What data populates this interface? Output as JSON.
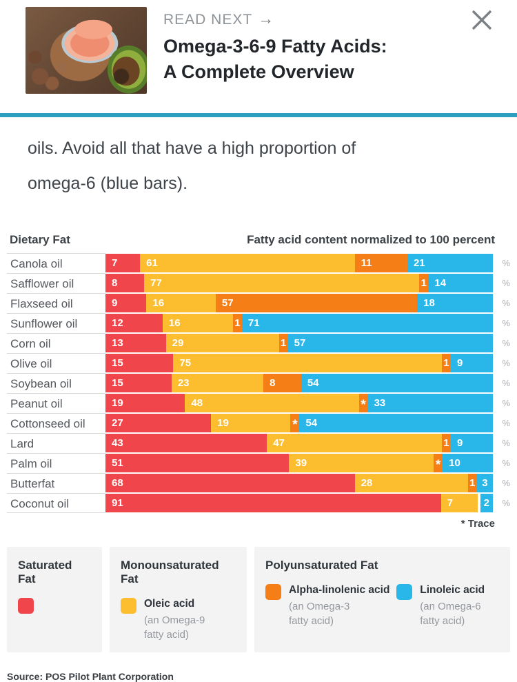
{
  "theme": {
    "divider_color": "#2D9FBE",
    "legend_bg": "#F3F3F4",
    "bar_label_color": "#FFFFFF"
  },
  "header": {
    "kicker": "READ NEXT",
    "arrow": "→",
    "title_line1": "Omega-3-6-9 Fatty Acids:",
    "title_line2": "A Complete Overview",
    "thumbnail_alt": "salmon-nuts-avocado-photo"
  },
  "body": {
    "line1": "oils. Avoid all that have a high proportion of",
    "line2": "omega-6 (blue bars)."
  },
  "chart_data": {
    "type": "bar",
    "orientation": "horizontal",
    "stacked": true,
    "normalized_to": 100,
    "col_header_left": "Dietary Fat",
    "col_header_right": "Fatty acid content normalized to 100 percent",
    "unit": "%",
    "trace_note": "* Trace",
    "colors": {
      "saturated": "#F0464B",
      "oleic": "#FCBD2E",
      "alpha_linolenic": "#F57E16",
      "linoleic": "#29B6E8",
      "spacer": "#FFFFFF"
    },
    "series_names": [
      "Saturated Fat",
      "Oleic acid (Omega-9)",
      "Alpha-linolenic acid (Omega-3)",
      "Linoleic acid (Omega-6)"
    ],
    "rows": [
      {
        "label": "Canola oil",
        "segments": [
          {
            "key": "saturated",
            "value": 7,
            "label": "7"
          },
          {
            "key": "oleic",
            "value": 61,
            "label": "61"
          },
          {
            "key": "alpha_linolenic",
            "value": 11,
            "label": "11"
          },
          {
            "key": "linoleic",
            "value": 21,
            "label": "21"
          }
        ]
      },
      {
        "label": "Safflower oil",
        "segments": [
          {
            "key": "saturated",
            "value": 8,
            "label": "8"
          },
          {
            "key": "oleic",
            "value": 77,
            "label": "77"
          },
          {
            "key": "alpha_linolenic",
            "value": 1,
            "label": "1"
          },
          {
            "key": "linoleic",
            "value": 14,
            "label": "14"
          }
        ]
      },
      {
        "label": "Flaxseed oil",
        "segments": [
          {
            "key": "saturated",
            "value": 9,
            "label": "9"
          },
          {
            "key": "oleic",
            "value": 16,
            "label": "16"
          },
          {
            "key": "alpha_linolenic",
            "value": 57,
            "label": "57"
          },
          {
            "key": "linoleic",
            "value": 18,
            "label": "18"
          }
        ]
      },
      {
        "label": "Sunflower oil",
        "segments": [
          {
            "key": "saturated",
            "value": 12,
            "label": "12"
          },
          {
            "key": "oleic",
            "value": 16,
            "label": "16"
          },
          {
            "key": "alpha_linolenic",
            "value": 1,
            "label": "1"
          },
          {
            "key": "linoleic",
            "value": 71,
            "label": "71"
          }
        ]
      },
      {
        "label": "Corn oil",
        "segments": [
          {
            "key": "saturated",
            "value": 13,
            "label": "13"
          },
          {
            "key": "oleic",
            "value": 29,
            "label": "29"
          },
          {
            "key": "alpha_linolenic",
            "value": 1,
            "label": "1"
          },
          {
            "key": "linoleic",
            "value": 57,
            "label": "57"
          }
        ]
      },
      {
        "label": "Olive oil",
        "segments": [
          {
            "key": "saturated",
            "value": 15,
            "label": "15"
          },
          {
            "key": "oleic",
            "value": 75,
            "label": "75"
          },
          {
            "key": "alpha_linolenic",
            "value": 1,
            "label": "1"
          },
          {
            "key": "linoleic",
            "value": 9,
            "label": "9"
          }
        ]
      },
      {
        "label": "Soybean oil",
        "segments": [
          {
            "key": "saturated",
            "value": 15,
            "label": "15"
          },
          {
            "key": "oleic",
            "value": 23,
            "label": "23"
          },
          {
            "key": "alpha_linolenic",
            "value": 8,
            "label": "8"
          },
          {
            "key": "linoleic",
            "value": 54,
            "label": "54"
          }
        ]
      },
      {
        "label": "Peanut oil",
        "segments": [
          {
            "key": "saturated",
            "value": 19,
            "label": "19"
          },
          {
            "key": "oleic",
            "value": 48,
            "label": "48"
          },
          {
            "key": "alpha_linolenic",
            "value": "trace",
            "label": "*"
          },
          {
            "key": "linoleic",
            "value": 33,
            "label": "33"
          }
        ]
      },
      {
        "label": "Cottonseed oil",
        "segments": [
          {
            "key": "saturated",
            "value": 27,
            "label": "27"
          },
          {
            "key": "oleic",
            "value": 19,
            "label": "19"
          },
          {
            "key": "alpha_linolenic",
            "value": "trace",
            "label": "*"
          },
          {
            "key": "linoleic",
            "value": 54,
            "label": "54"
          }
        ]
      },
      {
        "label": "Lard",
        "segments": [
          {
            "key": "saturated",
            "value": 43,
            "label": "43"
          },
          {
            "key": "oleic",
            "value": 47,
            "label": "47"
          },
          {
            "key": "alpha_linolenic",
            "value": 1,
            "label": "1"
          },
          {
            "key": "linoleic",
            "value": 9,
            "label": "9"
          }
        ]
      },
      {
        "label": "Palm oil",
        "segments": [
          {
            "key": "saturated",
            "value": 51,
            "label": "51"
          },
          {
            "key": "oleic",
            "value": 39,
            "label": "39"
          },
          {
            "key": "alpha_linolenic",
            "value": "trace",
            "label": "*"
          },
          {
            "key": "linoleic",
            "value": 10,
            "label": "10"
          }
        ]
      },
      {
        "label": "Butterfat",
        "segments": [
          {
            "key": "saturated",
            "value": 68,
            "label": "68"
          },
          {
            "key": "oleic",
            "value": 28,
            "label": "28"
          },
          {
            "key": "alpha_linolenic",
            "value": 1,
            "label": "1"
          },
          {
            "key": "linoleic",
            "value": 3,
            "label": "3"
          }
        ]
      },
      {
        "label": "Coconut oil",
        "segments": [
          {
            "key": "saturated",
            "value": 91,
            "label": "91"
          },
          {
            "key": "oleic",
            "value": 7,
            "label": "7"
          },
          {
            "key": "spacer",
            "value": "gap",
            "label": ""
          },
          {
            "key": "linoleic",
            "value": 2,
            "label": "2"
          }
        ]
      }
    ]
  },
  "legend": {
    "groups": [
      {
        "title": "Saturated Fat",
        "items": [
          {
            "color_key": "saturated",
            "name": "",
            "sub": ""
          }
        ]
      },
      {
        "title": "Monounsaturated Fat",
        "items": [
          {
            "color_key": "oleic",
            "name": "Oleic acid",
            "sub": "(an Omega-9 fatty acid)"
          }
        ]
      },
      {
        "title": "Polyunsaturated Fat",
        "items": [
          {
            "color_key": "alpha_linolenic",
            "name": "Alpha-linolenic acid",
            "sub": "(an Omega-3 fatty acid)"
          },
          {
            "color_key": "linoleic",
            "name": "Linoleic acid",
            "sub": "(an Omega-6 fatty acid)"
          }
        ]
      }
    ]
  },
  "source": "Source: POS Pilot Plant Corporation"
}
